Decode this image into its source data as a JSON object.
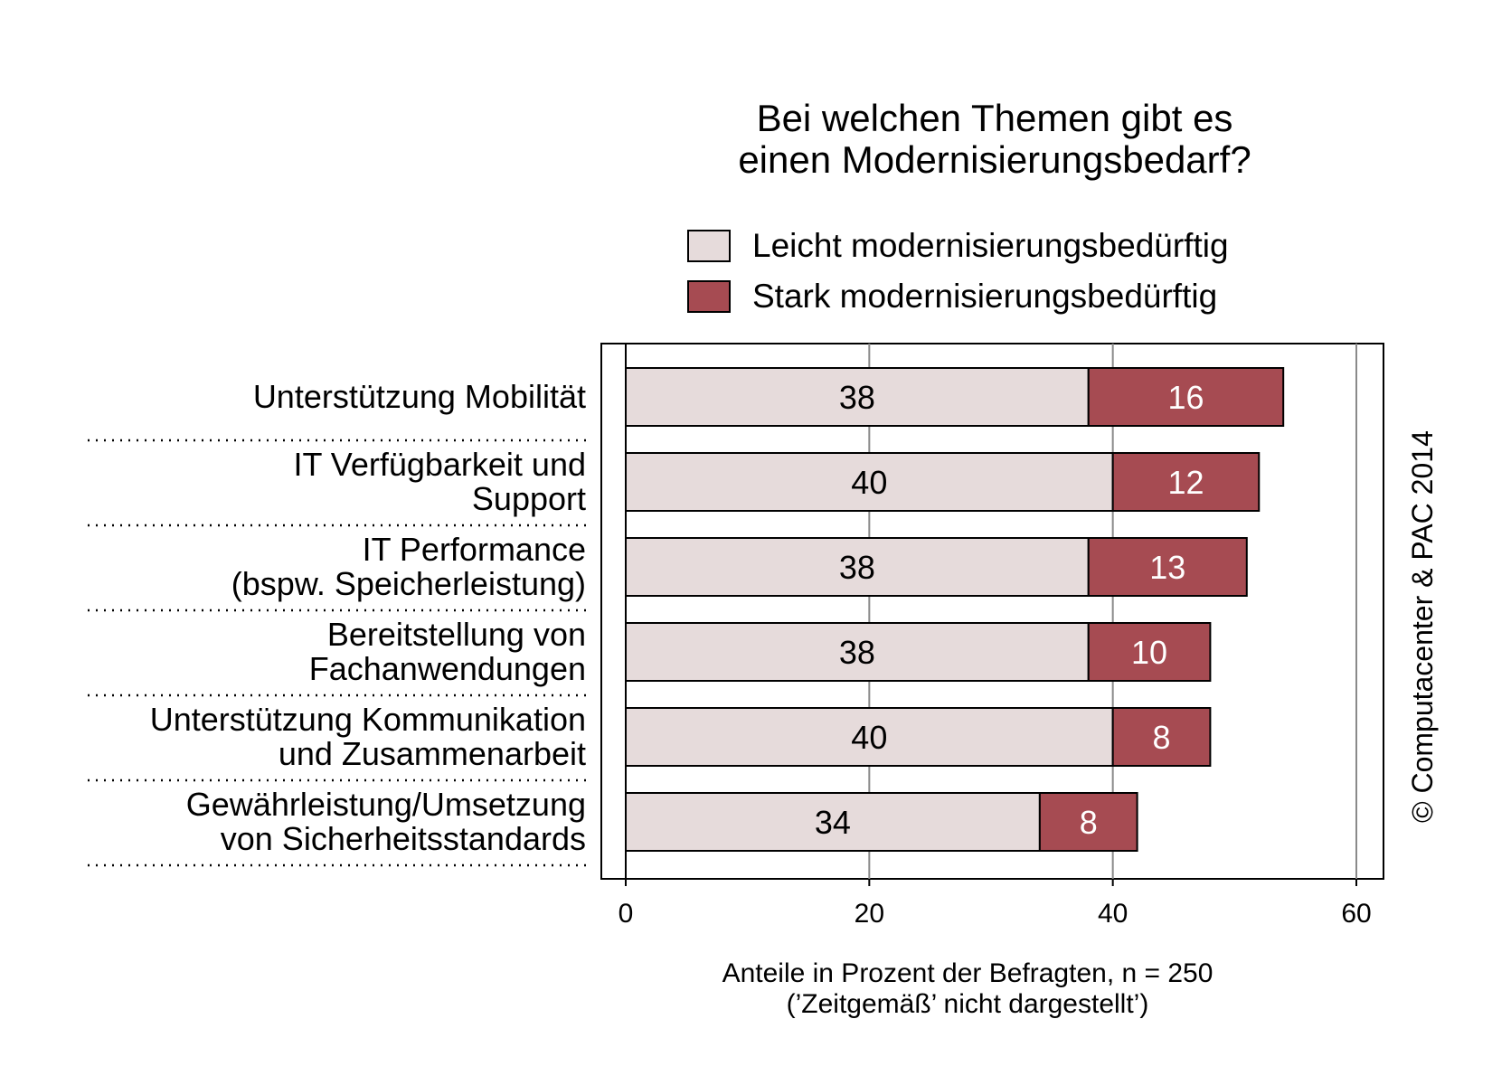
{
  "chart_data": {
    "type": "bar",
    "orientation": "horizontal",
    "stacked": true,
    "title": "Bei welchen Themen gibt es einen Modernisierungsbedarf?",
    "title_lines": [
      "Bei welchen Themen gibt es",
      "einen Modernisierungsbedarf?"
    ],
    "categories": [
      [
        "Unterstützung Mobilität"
      ],
      [
        "IT Verfügbarkeit und",
        "Support"
      ],
      [
        "IT Performance",
        "(bspw. Speicherleistung)"
      ],
      [
        "Bereitstellung von",
        "Fachanwendungen"
      ],
      [
        "Unterstützung Kommunikation",
        "und Zusammenarbeit"
      ],
      [
        "Gewährleistung/Umsetzung",
        "von Sicherheitsstandards"
      ]
    ],
    "series": [
      {
        "name": "Leicht modernisierungsbedürftig",
        "color": "#e6dbdb",
        "values": [
          38,
          40,
          38,
          38,
          40,
          34
        ]
      },
      {
        "name": "Stark modernisierungsbedürftig",
        "color": "#a64b52",
        "values": [
          16,
          12,
          13,
          10,
          8,
          8
        ]
      }
    ],
    "xlim": [
      0,
      60
    ],
    "xticks": [
      0,
      20,
      40,
      60
    ],
    "xlabel_lines": [
      "Anteile in Prozent der Befragten, n = 250",
      "(’Zeitgemäß’ nicht dargestellt’)"
    ],
    "grid": "vertical",
    "legend_position": "top"
  },
  "copyright": "© Computacenter & PAC 2014"
}
